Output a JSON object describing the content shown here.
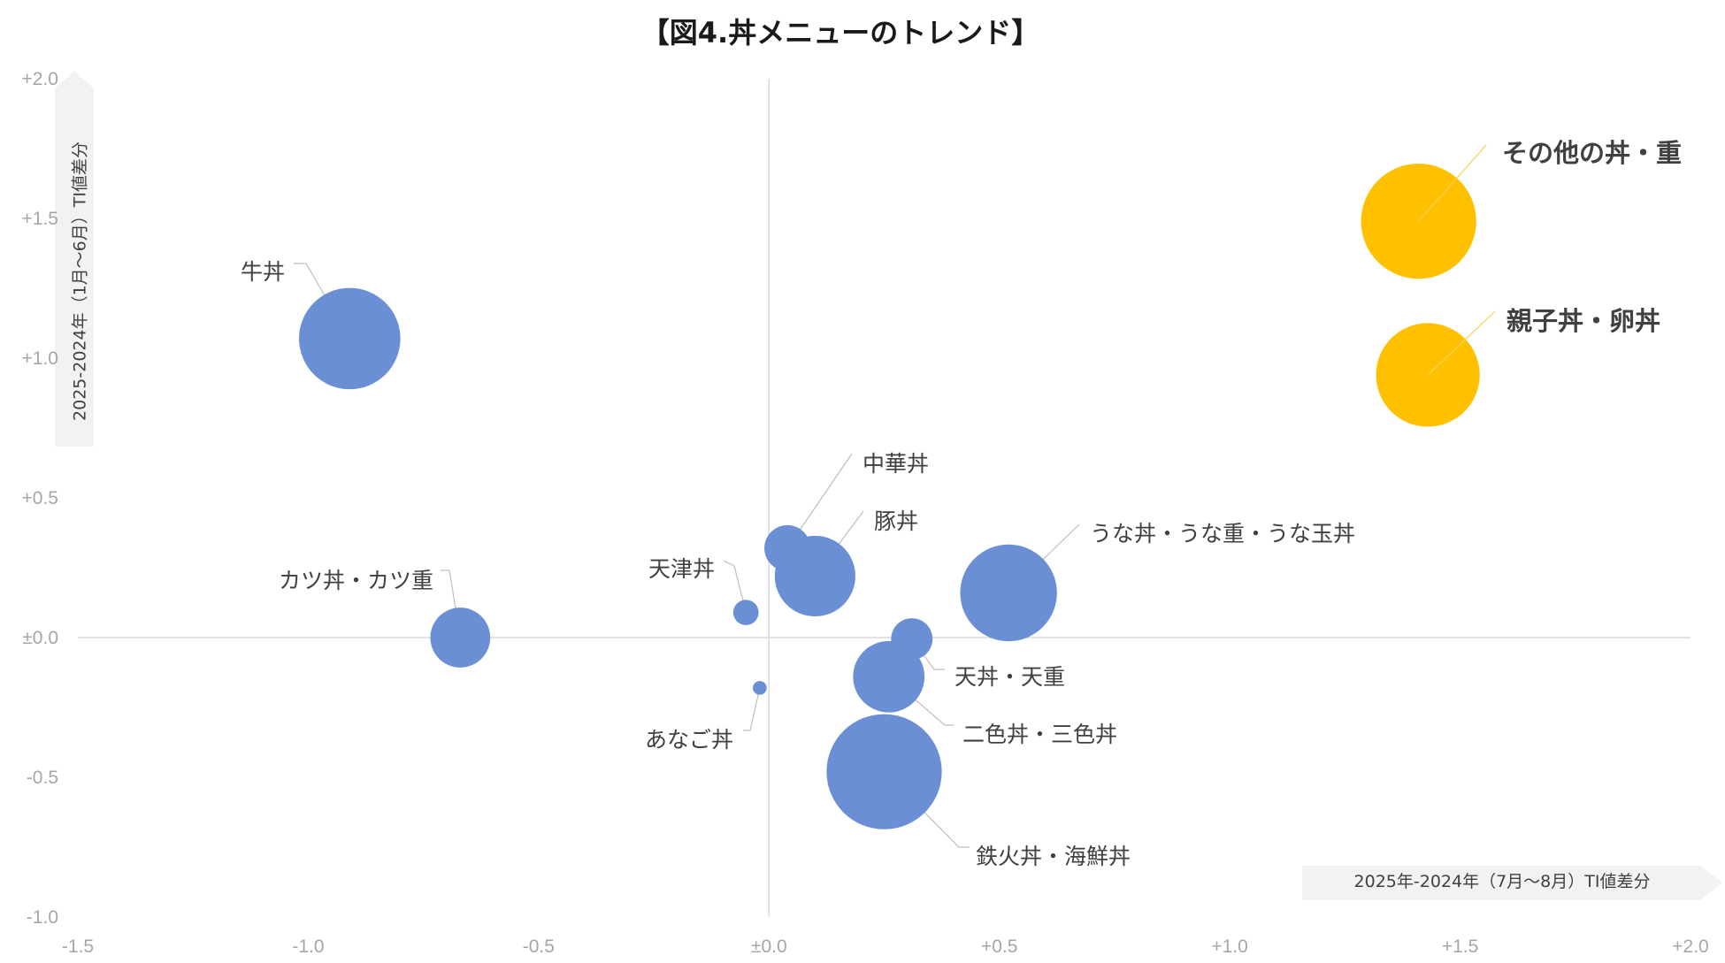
{
  "chart_data": {
    "type": "bubble",
    "title": "【図4.丼メニューのトレンド】",
    "xlabel": "2025年-2024年（7月～8月）TI値差分",
    "ylabel": "2025-2024年（1月～6月）TI値差分",
    "xlim": [
      -1.5,
      2.0
    ],
    "ylim": [
      -1.0,
      2.0
    ],
    "xticks": [
      {
        "value": -1.5,
        "label": "-1.5"
      },
      {
        "value": -1.0,
        "label": "-1.0"
      },
      {
        "value": -0.5,
        "label": "-0.5"
      },
      {
        "value": 0.0,
        "label": "±0.0"
      },
      {
        "value": 0.5,
        "label": "+0.5"
      },
      {
        "value": 1.0,
        "label": "+1.0"
      },
      {
        "value": 1.5,
        "label": "+1.5"
      },
      {
        "value": 2.0,
        "label": "+2.0"
      }
    ],
    "yticks": [
      {
        "value": 2.0,
        "label": "+2.0"
      },
      {
        "value": 1.5,
        "label": "+1.5"
      },
      {
        "value": 1.0,
        "label": "+1.0"
      },
      {
        "value": 0.5,
        "label": "+0.5"
      },
      {
        "value": 0.0,
        "label": "±0.0"
      },
      {
        "value": -0.5,
        "label": "-0.5"
      },
      {
        "value": -1.0,
        "label": "-1.0"
      }
    ],
    "grid": false,
    "colors": {
      "normal": "#6a8fd4",
      "highlight": "#ffc000",
      "leader": "#bfbfbf",
      "axis": "#d9d9d9"
    },
    "points": [
      {
        "name": "その他の丼・重",
        "x": 1.41,
        "y": 1.49,
        "size": 0.25,
        "highlight": true
      },
      {
        "name": "親子丼・卵丼",
        "x": 1.43,
        "y": 0.94,
        "size": 0.225,
        "highlight": true
      },
      {
        "name": "牛丼",
        "x": -0.91,
        "y": 1.07,
        "size": 0.22,
        "highlight": false
      },
      {
        "name": "中華丼",
        "x": 0.04,
        "y": 0.32,
        "size": 0.1,
        "highlight": false
      },
      {
        "name": "豚丼",
        "x": 0.1,
        "y": 0.22,
        "size": 0.175,
        "highlight": false
      },
      {
        "name": "天津丼",
        "x": -0.05,
        "y": 0.09,
        "size": 0.055,
        "highlight": false
      },
      {
        "name": "うな丼・うな重・うな玉丼",
        "x": 0.52,
        "y": 0.16,
        "size": 0.21,
        "highlight": false
      },
      {
        "name": "カツ丼・カツ重",
        "x": -0.67,
        "y": 0.0,
        "size": 0.13,
        "highlight": false
      },
      {
        "name": "天丼・天重",
        "x": 0.31,
        "y": -0.005,
        "size": 0.09,
        "highlight": false
      },
      {
        "name": "二色丼・三色丼",
        "x": 0.26,
        "y": -0.14,
        "size": 0.155,
        "highlight": false
      },
      {
        "name": "あなご丼",
        "x": -0.02,
        "y": -0.18,
        "size": 0.03,
        "highlight": false
      },
      {
        "name": "鉄火丼・海鮮丼",
        "x": 0.25,
        "y": -0.48,
        "size": 0.25,
        "highlight": false
      }
    ]
  }
}
